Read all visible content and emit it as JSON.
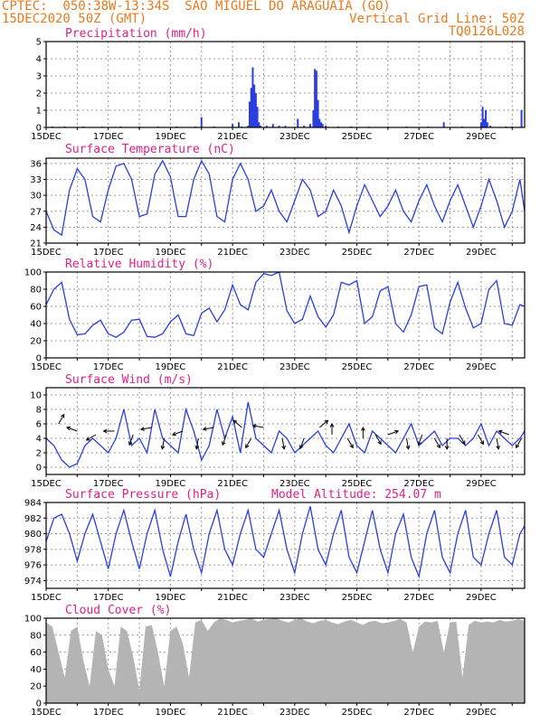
{
  "header": {
    "line1": "CPTEC:  050:38W-13:34S  SAO MIGUEL DO ARAGUAIA (GO)",
    "line2_left": "15DEC2020 50Z (GMT)",
    "line2_right": "Vertical Grid Line: 50Z",
    "line3_right": "TQ0126L028"
  },
  "x_axis": {
    "labels": [
      "15DEC",
      "17DEC",
      "19DEC",
      "21DEC",
      "23DEC",
      "25DEC",
      "27DEC",
      "29DEC"
    ],
    "days_total": 15.4
  },
  "colors": {
    "header": "#e87a1e",
    "title": "#e0208a",
    "line": "#2a3ee0",
    "bar": "#2a3ee0",
    "cloud": "#b4b4b4",
    "grid": "#999999"
  },
  "chart_data": [
    {
      "id": "precip",
      "type": "bar",
      "title": "Precipitation (mm/h)",
      "ylim": [
        0,
        5
      ],
      "yticks": [
        0,
        1,
        2,
        3,
        4,
        5
      ],
      "x_days": [
        0.2,
        0.6,
        1.2,
        1.8,
        2.4,
        3.0,
        3.6,
        4.2,
        4.8,
        5.0,
        5.4,
        6.0,
        6.2,
        6.3,
        6.5,
        6.55,
        6.6,
        6.65,
        6.7,
        6.75,
        6.8,
        6.85,
        6.9,
        7.1,
        7.3,
        7.5,
        7.7,
        8.1,
        8.3,
        8.5,
        8.6,
        8.65,
        8.7,
        8.75,
        8.8,
        8.85,
        8.9,
        9.0,
        9.4,
        9.8,
        10.4,
        11.0,
        11.6,
        12.3,
        12.8,
        13.4,
        14.0,
        14.05,
        14.1,
        14.15,
        14.2,
        14.3,
        14.8,
        15.0,
        15.3
      ],
      "values": [
        0.05,
        0.05,
        0.05,
        0.05,
        0.05,
        0.05,
        0.05,
        0.05,
        0.05,
        0.6,
        0.05,
        0.2,
        0.3,
        0.05,
        0.1,
        1.5,
        2.3,
        3.5,
        2.5,
        2.0,
        1.2,
        0.3,
        0.1,
        0.1,
        0.2,
        0.1,
        0.1,
        0.5,
        0.1,
        0.2,
        1.0,
        3.4,
        3.3,
        1.6,
        0.5,
        0.3,
        0.2,
        0.1,
        0.05,
        0.05,
        0.05,
        0.05,
        0.05,
        0.05,
        0.3,
        0.05,
        0.3,
        1.2,
        0.5,
        1.0,
        0.3,
        0.1,
        0.05,
        0.05,
        1.0
      ]
    },
    {
      "id": "temp",
      "type": "line",
      "title": "Surface Temperature (nC)",
      "ylim": [
        21,
        37
      ],
      "yticks": [
        21,
        24,
        27,
        30,
        33,
        36
      ],
      "x_days": [
        0,
        0.25,
        0.5,
        0.75,
        1,
        1.25,
        1.5,
        1.75,
        2,
        2.25,
        2.5,
        2.75,
        3,
        3.25,
        3.5,
        3.75,
        4,
        4.25,
        4.5,
        4.75,
        5,
        5.25,
        5.5,
        5.75,
        6,
        6.25,
        6.5,
        6.75,
        7,
        7.25,
        7.5,
        7.75,
        8,
        8.25,
        8.5,
        8.75,
        9,
        9.25,
        9.5,
        9.75,
        10,
        10.25,
        10.5,
        10.75,
        11,
        11.25,
        11.5,
        11.75,
        12,
        12.25,
        12.5,
        12.75,
        13,
        13.25,
        13.5,
        13.75,
        14,
        14.25,
        14.5,
        14.75,
        15,
        15.25,
        15.4
      ],
      "values": [
        27,
        23.5,
        22.5,
        31,
        35,
        33,
        26,
        25,
        31,
        35.5,
        36,
        33,
        26,
        26.5,
        34,
        36.5,
        33.5,
        26,
        26,
        33,
        36.5,
        34,
        26,
        25,
        33,
        36,
        33,
        27,
        28,
        31,
        27,
        25,
        29,
        33,
        31,
        26,
        27,
        31,
        28,
        23,
        28,
        32,
        29,
        26,
        28,
        31,
        27,
        25,
        29,
        32,
        28,
        25,
        29,
        32,
        28,
        24,
        28,
        33,
        29,
        24,
        27,
        33,
        27
      ]
    },
    {
      "id": "rh",
      "type": "line",
      "title": "Relative Humidity (%)",
      "ylim": [
        0,
        100
      ],
      "yticks": [
        0,
        20,
        40,
        60,
        80,
        100
      ],
      "x_days": [
        0,
        0.25,
        0.5,
        0.75,
        1,
        1.25,
        1.5,
        1.75,
        2,
        2.25,
        2.5,
        2.75,
        3,
        3.25,
        3.5,
        3.75,
        4,
        4.25,
        4.5,
        4.75,
        5,
        5.25,
        5.5,
        5.75,
        6,
        6.25,
        6.5,
        6.75,
        7,
        7.25,
        7.5,
        7.75,
        8,
        8.25,
        8.5,
        8.75,
        9,
        9.25,
        9.5,
        9.75,
        10,
        10.25,
        10.5,
        10.75,
        11,
        11.25,
        11.5,
        11.75,
        12,
        12.25,
        12.5,
        12.75,
        13,
        13.25,
        13.5,
        13.75,
        14,
        14.25,
        14.5,
        14.75,
        15,
        15.25,
        15.4
      ],
      "values": [
        62,
        80,
        88,
        45,
        27,
        28,
        38,
        44,
        28,
        24,
        30,
        44,
        45,
        25,
        24,
        28,
        42,
        50,
        28,
        26,
        52,
        58,
        42,
        56,
        85,
        62,
        56,
        88,
        98,
        96,
        100,
        55,
        40,
        45,
        72,
        48,
        36,
        50,
        88,
        85,
        90,
        40,
        48,
        78,
        83,
        40,
        30,
        50,
        83,
        85,
        35,
        28,
        65,
        88,
        58,
        35,
        40,
        80,
        90,
        40,
        38,
        62,
        60
      ]
    },
    {
      "id": "wind",
      "type": "line",
      "title": "Surface Wind (m/s)",
      "ylim": [
        -1,
        11
      ],
      "yticks": [
        0,
        2,
        4,
        6,
        8,
        10
      ],
      "x_days": [
        0,
        0.25,
        0.5,
        0.75,
        1,
        1.25,
        1.5,
        1.75,
        2,
        2.25,
        2.5,
        2.75,
        3,
        3.25,
        3.5,
        3.75,
        4,
        4.25,
        4.5,
        4.75,
        5,
        5.25,
        5.5,
        5.75,
        6,
        6.25,
        6.5,
        6.75,
        7,
        7.25,
        7.5,
        7.75,
        8,
        8.25,
        8.5,
        8.75,
        9,
        9.25,
        9.5,
        9.75,
        10,
        10.25,
        10.5,
        10.75,
        11,
        11.25,
        11.5,
        11.75,
        12,
        12.25,
        12.5,
        12.75,
        13,
        13.25,
        13.5,
        13.75,
        14,
        14.25,
        14.5,
        14.75,
        15,
        15.25,
        15.4
      ],
      "values": [
        4,
        3,
        1,
        0,
        0.5,
        3,
        4,
        3,
        2,
        4,
        8,
        3,
        4,
        2,
        8,
        4,
        3,
        2,
        8,
        5,
        1,
        3,
        8,
        4,
        7,
        2,
        9,
        4,
        3,
        2,
        5,
        4,
        2,
        3,
        4,
        5,
        3,
        2,
        4,
        6,
        3,
        2,
        5,
        4,
        3,
        2,
        4,
        6,
        3,
        4,
        5,
        3,
        4,
        4,
        3,
        4,
        6,
        3,
        5,
        4,
        3,
        4,
        5
      ],
      "arrows": [
        {
          "x_day": 0.4,
          "speed": 6.0,
          "angle": -60
        },
        {
          "x_day": 1.0,
          "speed": 5.0,
          "angle": 200
        },
        {
          "x_day": 1.6,
          "speed": 4.5,
          "angle": 150
        },
        {
          "x_day": 2.2,
          "speed": 5.0,
          "angle": 180
        },
        {
          "x_day": 2.8,
          "speed": 4.5,
          "angle": 110
        },
        {
          "x_day": 3.4,
          "speed": 5.5,
          "angle": 170
        },
        {
          "x_day": 3.8,
          "speed": 4.0,
          "angle": 100
        },
        {
          "x_day": 4.4,
          "speed": 5.0,
          "angle": 160
        },
        {
          "x_day": 4.9,
          "speed": 4.0,
          "angle": 100
        },
        {
          "x_day": 5.4,
          "speed": 5.5,
          "angle": 170
        },
        {
          "x_day": 5.8,
          "speed": 4.5,
          "angle": 110
        },
        {
          "x_day": 6.3,
          "speed": 5.5,
          "angle": 220
        },
        {
          "x_day": 6.6,
          "speed": 4.0,
          "angle": 120
        },
        {
          "x_day": 7.0,
          "speed": 5.5,
          "angle": 190
        },
        {
          "x_day": 7.6,
          "speed": 4.0,
          "angle": 80
        },
        {
          "x_day": 8.3,
          "speed": 4.0,
          "angle": 110
        },
        {
          "x_day": 8.8,
          "speed": 5.5,
          "angle": -40
        },
        {
          "x_day": 9.2,
          "speed": 4.5,
          "angle": -90
        },
        {
          "x_day": 9.7,
          "speed": 4.0,
          "angle": 60
        },
        {
          "x_day": 10.2,
          "speed": 4.0,
          "angle": -90
        },
        {
          "x_day": 10.6,
          "speed": 4.5,
          "angle": 60
        },
        {
          "x_day": 11.0,
          "speed": 4.5,
          "angle": -20
        },
        {
          "x_day": 11.6,
          "speed": 4.0,
          "angle": 80
        },
        {
          "x_day": 12.1,
          "speed": 4.5,
          "angle": 110
        },
        {
          "x_day": 12.5,
          "speed": 4.0,
          "angle": 60
        },
        {
          "x_day": 12.9,
          "speed": 4.0,
          "angle": 90
        },
        {
          "x_day": 13.3,
          "speed": 4.5,
          "angle": 60
        },
        {
          "x_day": 13.9,
          "speed": 4.5,
          "angle": 60
        },
        {
          "x_day": 14.5,
          "speed": 4.0,
          "angle": 80
        },
        {
          "x_day": 14.9,
          "speed": 4.5,
          "angle": 200
        },
        {
          "x_day": 15.3,
          "speed": 4.0,
          "angle": 120
        }
      ]
    },
    {
      "id": "pres",
      "type": "line",
      "title": "Surface Pressure (hPa)",
      "subtitle": "Model Altitude: 254.07 m",
      "ylim": [
        973,
        984
      ],
      "yticks": [
        974,
        976,
        978,
        980,
        982,
        984
      ],
      "x_days": [
        0,
        0.25,
        0.5,
        0.75,
        1,
        1.25,
        1.5,
        1.75,
        2,
        2.25,
        2.5,
        2.75,
        3,
        3.25,
        3.5,
        3.75,
        4,
        4.25,
        4.5,
        4.75,
        5,
        5.25,
        5.5,
        5.75,
        6,
        6.25,
        6.5,
        6.75,
        7,
        7.25,
        7.5,
        7.75,
        8,
        8.25,
        8.5,
        8.75,
        9,
        9.25,
        9.5,
        9.75,
        10,
        10.25,
        10.5,
        10.75,
        11,
        11.25,
        11.5,
        11.75,
        12,
        12.25,
        12.5,
        12.75,
        13,
        13.25,
        13.5,
        13.75,
        14,
        14.25,
        14.5,
        14.75,
        15,
        15.25,
        15.4
      ],
      "values": [
        979,
        982,
        982.5,
        980,
        976.5,
        980,
        982.5,
        979,
        975.5,
        980,
        983,
        979,
        975.5,
        980,
        983,
        978,
        974.5,
        979,
        982.5,
        978,
        975,
        980,
        983,
        978,
        976,
        980,
        983,
        978,
        977,
        980,
        983,
        978,
        975,
        980,
        983.5,
        978,
        976,
        980,
        983,
        977,
        975,
        979,
        983,
        978,
        975,
        980,
        982.5,
        977,
        974.5,
        980,
        983,
        977,
        975,
        980,
        983,
        977,
        976,
        980,
        983,
        977,
        976,
        980,
        981
      ]
    },
    {
      "id": "cloud",
      "type": "area",
      "title": "Cloud Cover (%)",
      "ylim": [
        0,
        100
      ],
      "yticks": [
        0,
        20,
        40,
        60,
        80,
        100
      ],
      "x_days": [
        0,
        0.2,
        0.4,
        0.6,
        0.8,
        1,
        1.2,
        1.4,
        1.6,
        1.8,
        2,
        2.2,
        2.4,
        2.6,
        2.8,
        3,
        3.2,
        3.4,
        3.6,
        3.8,
        4,
        4.2,
        4.4,
        4.6,
        4.8,
        5,
        5.2,
        5.4,
        5.6,
        5.8,
        6,
        6.2,
        6.4,
        6.6,
        6.8,
        7,
        7.2,
        7.4,
        7.6,
        7.8,
        8,
        8.2,
        8.4,
        8.6,
        8.8,
        9,
        9.2,
        9.4,
        9.6,
        9.8,
        10,
        10.2,
        10.4,
        10.6,
        10.8,
        11,
        11.2,
        11.4,
        11.6,
        11.8,
        12,
        12.2,
        12.4,
        12.6,
        12.8,
        13,
        13.2,
        13.4,
        13.6,
        13.8,
        14,
        14.2,
        14.4,
        14.6,
        14.8,
        15,
        15.2,
        15.4
      ],
      "values": [
        95,
        90,
        60,
        30,
        85,
        90,
        50,
        20,
        85,
        80,
        40,
        20,
        90,
        85,
        55,
        15,
        90,
        92,
        60,
        20,
        85,
        90,
        70,
        30,
        95,
        98,
        85,
        95,
        100,
        98,
        95,
        97,
        98,
        100,
        96,
        98,
        99,
        100,
        97,
        95,
        98,
        100,
        96,
        94,
        97,
        98,
        95,
        93,
        96,
        98,
        95,
        92,
        96,
        97,
        94,
        95,
        97,
        99,
        95,
        60,
        90,
        96,
        95,
        97,
        60,
        95,
        96,
        30,
        92,
        97,
        95,
        96,
        95,
        98,
        96,
        97,
        99,
        97
      ]
    }
  ]
}
